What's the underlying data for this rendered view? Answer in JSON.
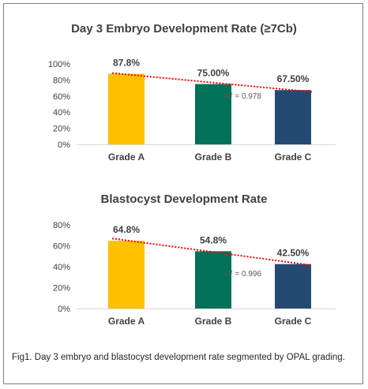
{
  "chart_data": [
    {
      "type": "bar",
      "title": "Day 3 Embryo Development Rate (≥7Cb)",
      "categories": [
        "Grade A",
        "Grade B",
        "Grade C"
      ],
      "values": [
        87.8,
        75.0,
        67.5
      ],
      "data_labels": [
        "87.8%",
        "75.00%",
        "67.50%"
      ],
      "colors": [
        "#ffc000",
        "#00725a",
        "#244a72"
      ],
      "ylim": [
        0,
        100
      ],
      "yticks": [
        "0%",
        "20%",
        "40%",
        "60%",
        "80%",
        "100%"
      ],
      "trendline": {
        "type": "linear",
        "color": "#ff0000",
        "r2_label": "R² = 0.978"
      },
      "grid": false,
      "legend": "none"
    },
    {
      "type": "bar",
      "title": "Blastocyst Development Rate",
      "categories": [
        "Grade A",
        "Grade B",
        "Grade C"
      ],
      "values": [
        64.8,
        54.8,
        42.5
      ],
      "data_labels": [
        "64.8%",
        "54.8%",
        "42.50%"
      ],
      "colors": [
        "#ffc000",
        "#00725a",
        "#244a72"
      ],
      "ylim": [
        0,
        80
      ],
      "yticks": [
        "0%",
        "20%",
        "40%",
        "60%",
        "80%"
      ],
      "trendline": {
        "type": "linear",
        "color": "#ff0000",
        "r2_label": "R² = 0.996"
      },
      "grid": false,
      "legend": "none"
    }
  ],
  "caption": "Fig1. Day 3 embryo and blastocyst development rate segmented by OPAL grading."
}
